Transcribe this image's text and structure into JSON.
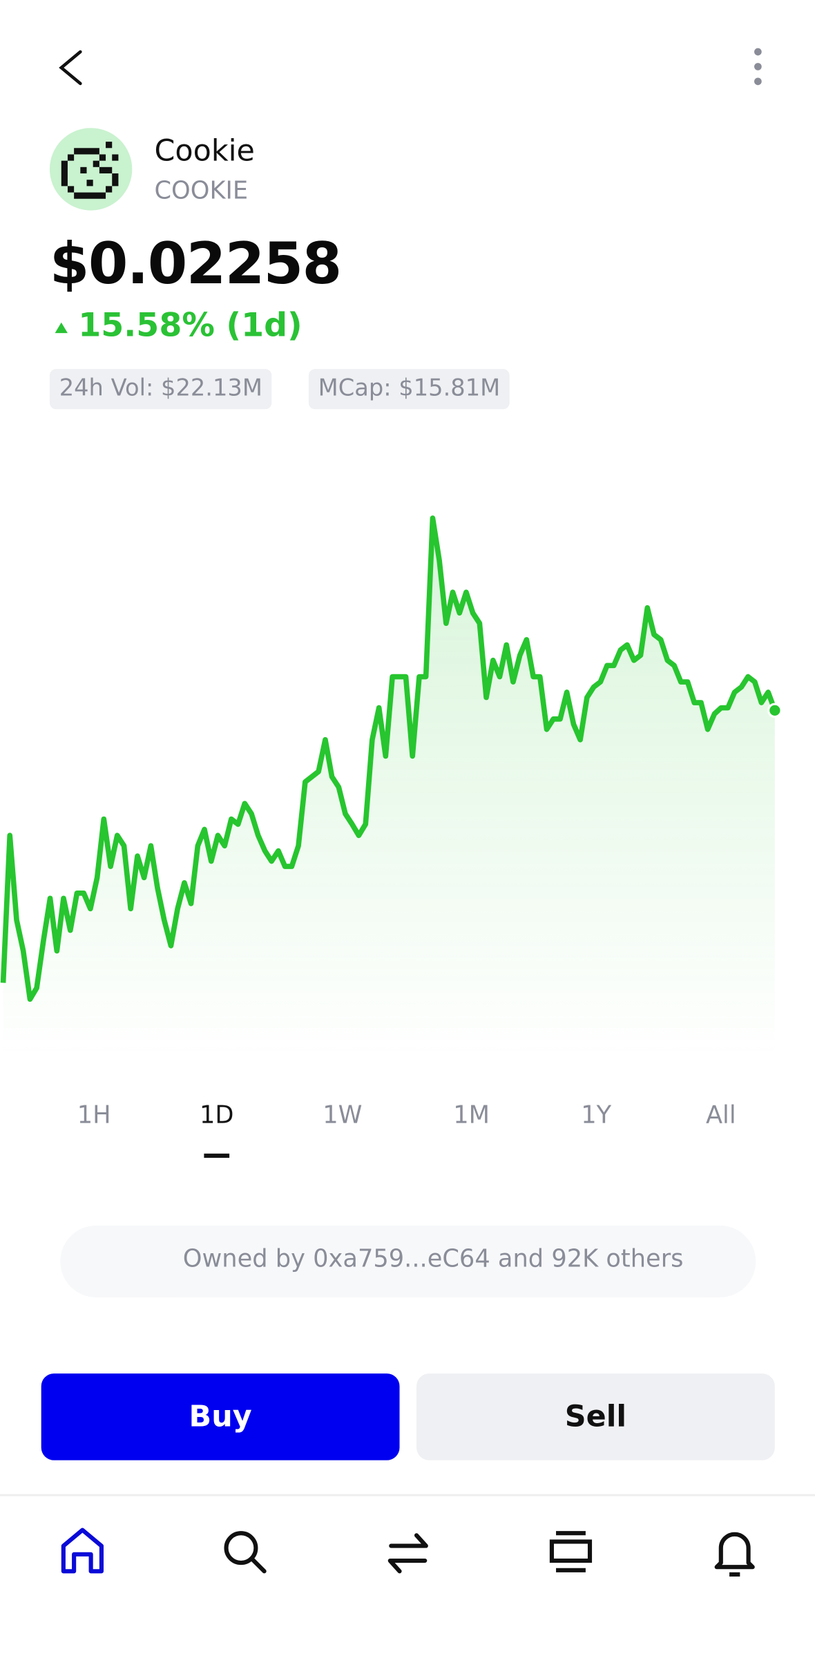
{
  "coin": {
    "name": "Cookie",
    "symbol": "COOKIE"
  },
  "price": "$0.02258",
  "change": "15.58% (1d)",
  "stats": [
    "24h Vol: $22.13M",
    "MCap: $15.81M"
  ],
  "chart": {
    "type": "line",
    "color": "#27c52f",
    "values": [
      0.01942,
      0.02113,
      0.02015,
      0.01979,
      0.01923,
      0.01936,
      0.01991,
      0.0204,
      0.01979,
      0.0204,
      0.02003,
      0.02046,
      0.02046,
      0.02028,
      0.02064,
      0.02132,
      0.02077,
      0.02113,
      0.02101,
      0.02028,
      0.02089,
      0.02064,
      0.02101,
      0.02052,
      0.02015,
      0.01985,
      0.02028,
      0.02058,
      0.02034,
      0.02101,
      0.0212,
      0.02083,
      0.02113,
      0.02101,
      0.02132,
      0.02126,
      0.0215,
      0.02138,
      0.02113,
      0.02095,
      0.02083,
      0.02095,
      0.02077,
      0.02077,
      0.02101,
      0.02175,
      0.02181,
      0.02187,
      0.02224,
      0.02181,
      0.02169,
      0.02138,
      0.02126,
      0.02113,
      0.02126,
      0.02224,
      0.02261,
      0.02205,
      0.02297,
      0.02297,
      0.02297,
      0.02205,
      0.02297,
      0.02297,
      0.02481,
      0.02432,
      0.02359,
      0.02395,
      0.02371,
      0.02395,
      0.02371,
      0.02359,
      0.02273,
      0.02316,
      0.02297,
      0.02334,
      0.02291,
      0.02322,
      0.0234,
      0.02297,
      0.02297,
      0.02236,
      0.02248,
      0.02248,
      0.02279,
      0.02242,
      0.02224,
      0.02273,
      0.02285,
      0.02291,
      0.0231,
      0.0231,
      0.02328,
      0.02334,
      0.02316,
      0.02322,
      0.02377,
      0.02346,
      0.0234,
      0.02316,
      0.0231,
      0.02291,
      0.02291,
      0.02267,
      0.02267,
      0.02236,
      0.02254,
      0.02261,
      0.02261,
      0.02279,
      0.02285,
      0.02297,
      0.02291,
      0.02267,
      0.02279,
      0.02258
    ]
  },
  "timeframes": [
    "1H",
    "1D",
    "1W",
    "1M",
    "1Y",
    "All"
  ],
  "owners": "Owned by 0xa759...eC64 and 92K others",
  "buttons": [
    "Buy",
    "Sell"
  ]
}
